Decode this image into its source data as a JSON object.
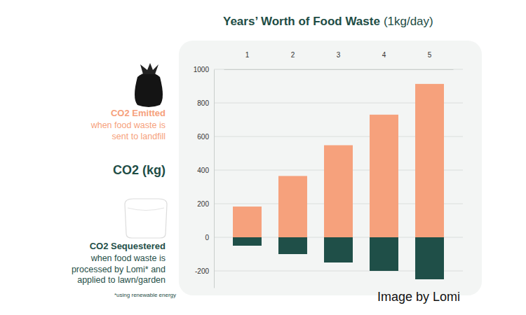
{
  "chart_data": {
    "type": "bar",
    "title": "Years’ Worth of Food Waste",
    "subtitle": "(1kg/day)",
    "y_label": "CO2 (kg)",
    "categories": [
      "1",
      "2",
      "3",
      "4",
      "5"
    ],
    "series": [
      {
        "name": "CO2 Emitted",
        "description": "when food waste is sent to landfill",
        "color": "#f6a17c",
        "values": [
          183,
          365,
          548,
          730,
          913
        ]
      },
      {
        "name": "CO2 Sequestered",
        "description": "when food waste is processed by Lomi* and applied to lawn/garden",
        "color": "#1f4f48",
        "values": [
          -50,
          -100,
          -150,
          -200,
          -250
        ]
      }
    ],
    "ylim": [
      -300,
      1000
    ],
    "yticks": [
      -200,
      0,
      200,
      400,
      600,
      800,
      1000
    ],
    "stacked": true,
    "grid": true,
    "legend": "left",
    "footnote": "*using renewable energy",
    "credit": "Image by Lomi"
  }
}
